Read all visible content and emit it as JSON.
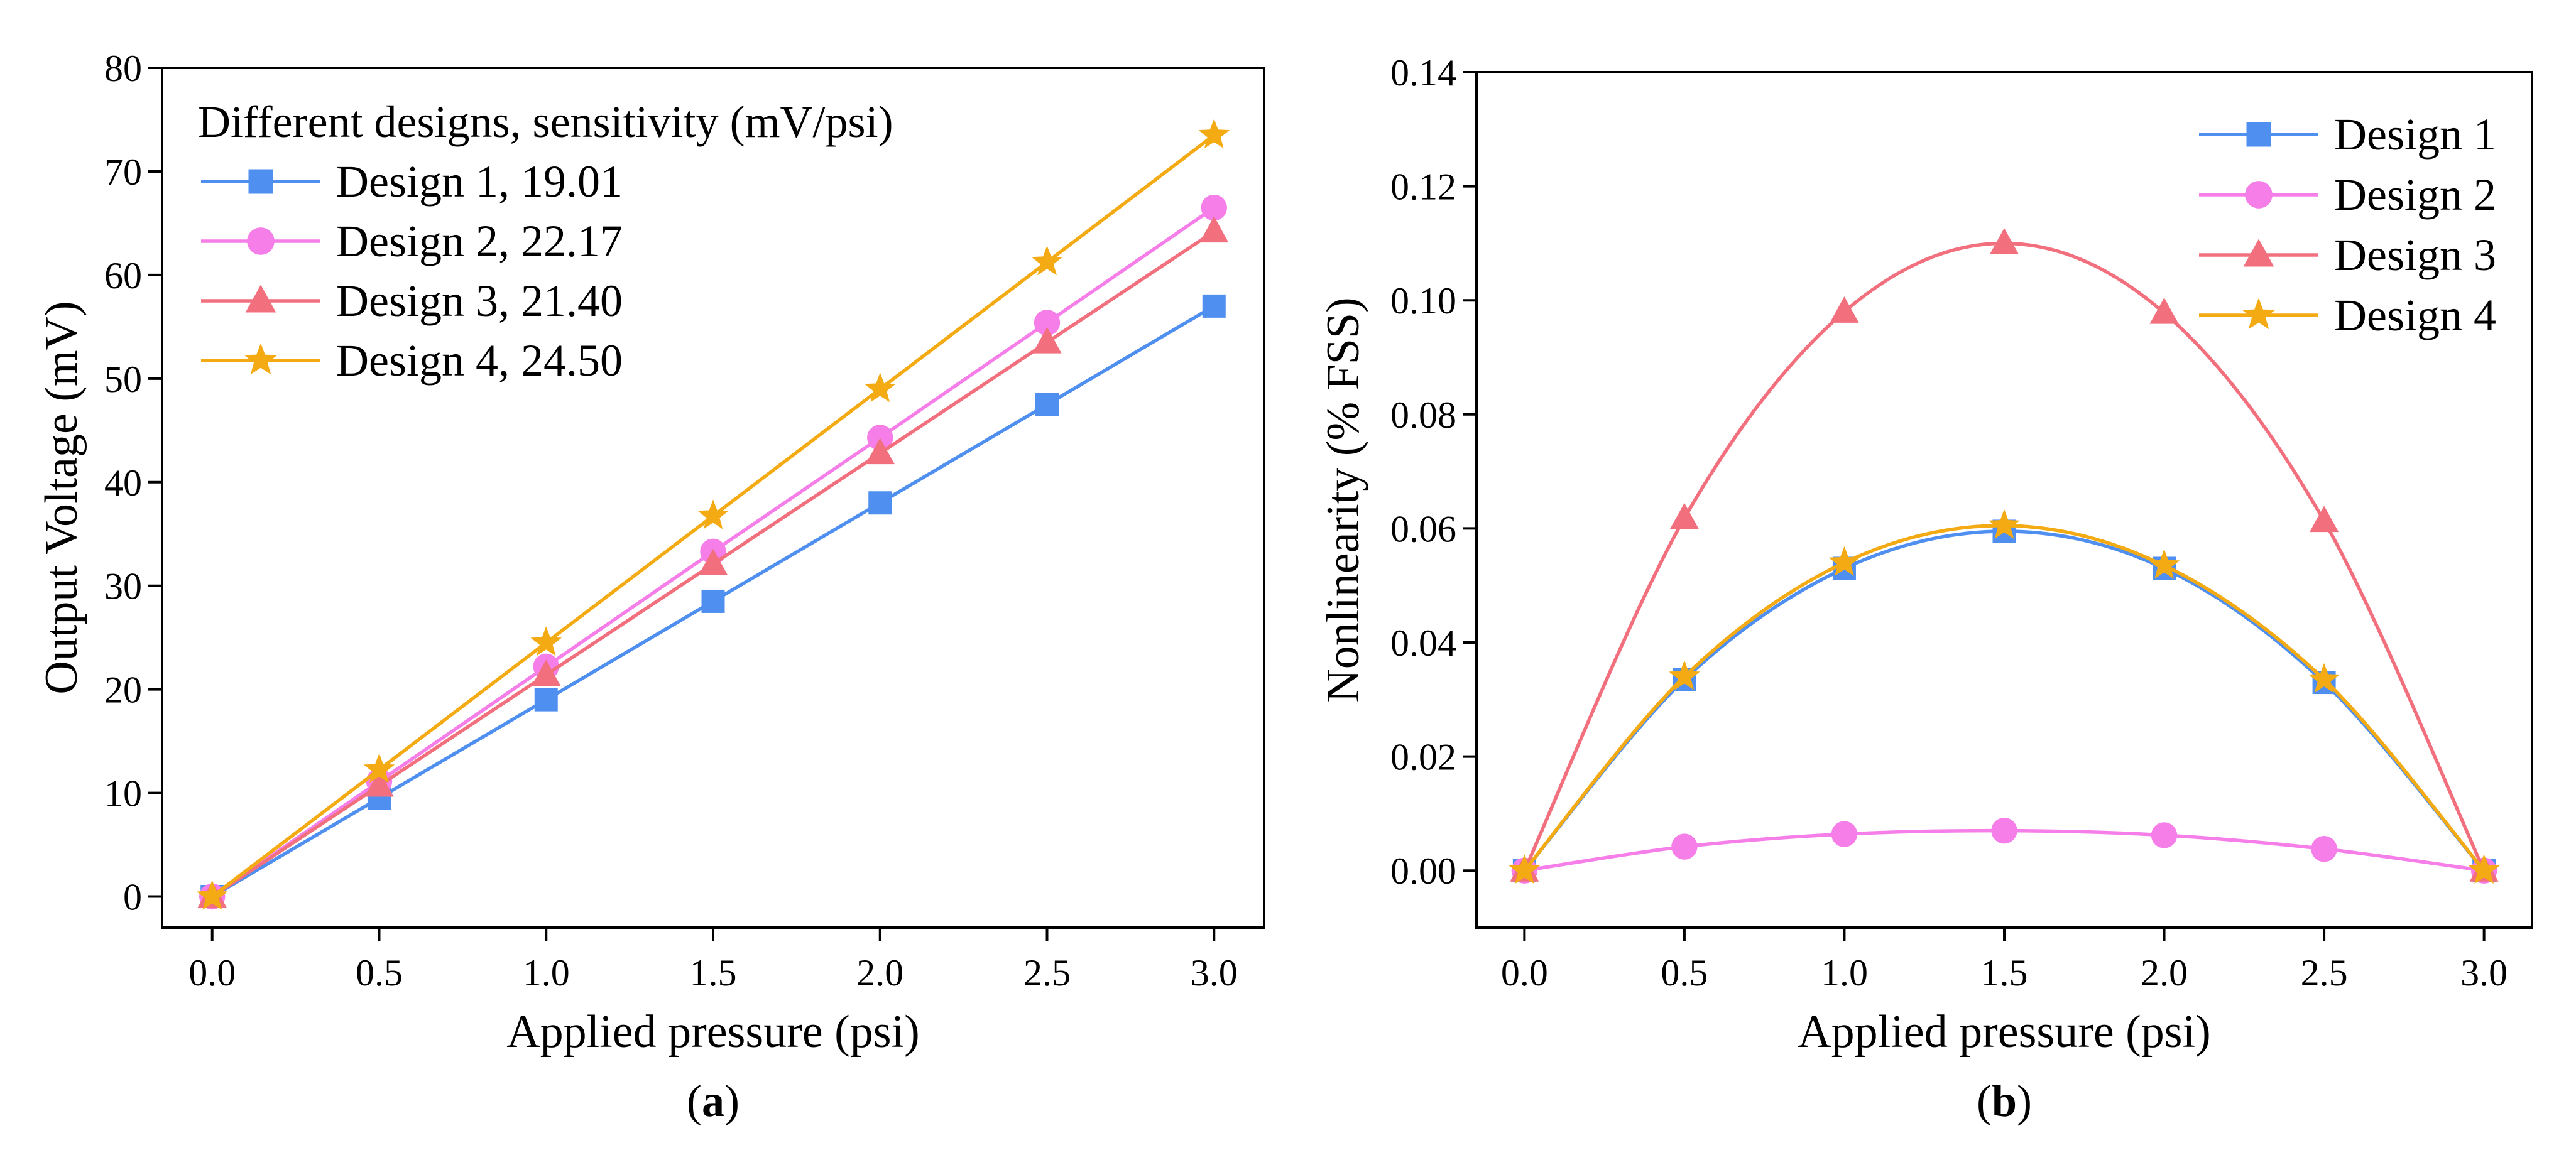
{
  "chart_data": [
    {
      "type": "line",
      "panel_label": "(a)",
      "panel_letter": "a",
      "xlabel": "Applied pressure (psi)",
      "ylabel": "Output Voltage (mV)",
      "xlim": [
        -0.15,
        3.15
      ],
      "ylim": [
        -3,
        80
      ],
      "xticks": [
        "0.0",
        "0.5",
        "1.0",
        "1.5",
        "2.0",
        "2.5",
        "3.0"
      ],
      "yticks": [
        "0",
        "10",
        "20",
        "30",
        "40",
        "50",
        "60",
        "70",
        "80"
      ],
      "legend_title": "Different designs, sensitivity (mV/psi)",
      "legend_position": "top-left",
      "x": [
        0,
        0.5,
        1.0,
        1.5,
        2.0,
        2.5,
        3.0
      ],
      "series": [
        {
          "name": "Design 1, 19.01",
          "color": "#4f8ff0",
          "marker": "square",
          "values": [
            0,
            9.5,
            19.0,
            28.5,
            38.0,
            47.5,
            57.0
          ]
        },
        {
          "name": "Design 2, 22.17",
          "color": "#f57ee9",
          "marker": "circle",
          "values": [
            0,
            11.1,
            22.2,
            33.3,
            44.3,
            55.4,
            66.5
          ]
        },
        {
          "name": "Design 3, 21.40",
          "color": "#f2707e",
          "marker": "triangle",
          "values": [
            0,
            10.7,
            21.4,
            32.1,
            42.8,
            53.5,
            64.2
          ]
        },
        {
          "name": "Design 4, 24.50",
          "color": "#f4aa12",
          "marker": "star",
          "values": [
            0,
            12.25,
            24.5,
            36.75,
            49.0,
            61.25,
            73.5
          ]
        }
      ]
    },
    {
      "type": "line",
      "panel_label": "(b)",
      "panel_letter": "b",
      "xlabel": "Applied pressure (psi)",
      "ylabel": "Nonlinearity (% FSS)",
      "xlim": [
        -0.15,
        3.15
      ],
      "ylim": [
        -0.01,
        0.14
      ],
      "xticks": [
        "0.0",
        "0.5",
        "1.0",
        "1.5",
        "2.0",
        "2.5",
        "3.0"
      ],
      "yticks": [
        "0.00",
        "0.02",
        "0.04",
        "0.06",
        "0.08",
        "0.10",
        "0.12",
        "0.14"
      ],
      "legend_position": "top-right",
      "x": [
        0,
        0.5,
        1.0,
        1.5,
        2.0,
        2.5,
        3.0
      ],
      "series": [
        {
          "name": "Design 1",
          "color": "#4f8ff0",
          "marker": "square",
          "values": [
            0,
            0.0335,
            0.053,
            0.0595,
            0.053,
            0.033,
            0
          ]
        },
        {
          "name": "Design 2",
          "color": "#f57ee9",
          "marker": "circle",
          "values": [
            0,
            0.0042,
            0.0064,
            0.007,
            0.0062,
            0.0038,
            0
          ]
        },
        {
          "name": "Design 3",
          "color": "#f2707e",
          "marker": "triangle",
          "values": [
            0,
            0.0618,
            0.098,
            0.11,
            0.0978,
            0.0613,
            0
          ]
        },
        {
          "name": "Design 4",
          "color": "#f4aa12",
          "marker": "star",
          "values": [
            0,
            0.034,
            0.054,
            0.0605,
            0.0535,
            0.0335,
            0
          ]
        }
      ]
    }
  ]
}
